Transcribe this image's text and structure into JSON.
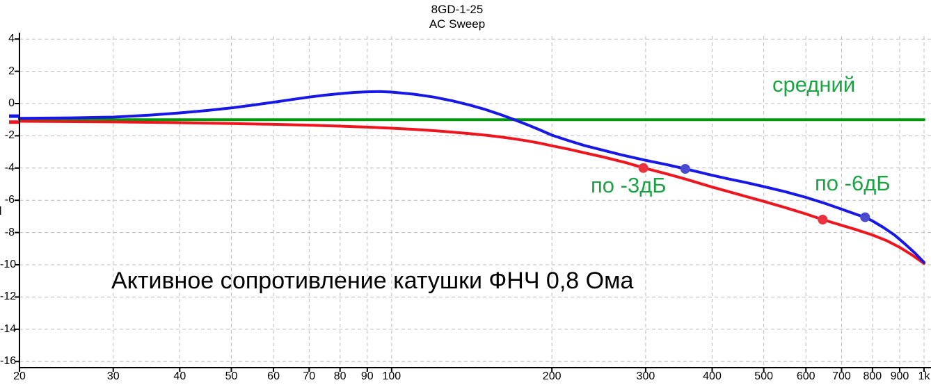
{
  "header": {
    "title_line1": "8GD-1-25",
    "title_line2": "AC Sweep"
  },
  "annotations": {
    "average_label": "средний",
    "minus3db_label": "по -3дБ",
    "minus6db_label": "по -6дБ",
    "note": "Активное сопротивление катушки ФНЧ 0,8 Ома",
    "clipped_left_fragment": "п"
  },
  "colors": {
    "blue_curve": "#1717e6",
    "red_curve": "#ee151e",
    "green_line": "#009a0c",
    "green_text": "#1ea344",
    "grid": "#bcbcbc",
    "axis": "#000000",
    "red_dot": "#e8333f",
    "blue_dot": "#4a4ad0",
    "note_text": "#000000"
  },
  "chart_data": {
    "type": "line",
    "title": "8GD-1-25",
    "subtitle": "AC Sweep",
    "x_axis": {
      "scale": "log",
      "min": 20,
      "max": 1000,
      "tick_labels": [
        "20",
        "30",
        "40",
        "50",
        "60",
        "70",
        "80",
        "90",
        "100",
        "200",
        "300",
        "400",
        "500",
        "600",
        "700",
        "800",
        "900",
        "1k"
      ],
      "tick_values": [
        20,
        30,
        40,
        50,
        60,
        70,
        80,
        90,
        100,
        200,
        300,
        400,
        500,
        600,
        700,
        800,
        900,
        1000
      ],
      "grid": "dashed"
    },
    "y_axis": {
      "min": -16,
      "max": 4,
      "tick_step": 2,
      "tick_labels": [
        "4",
        "2",
        "0",
        "-2",
        "-4",
        "-6",
        "-8",
        "-10",
        "-12",
        "-14",
        "-16"
      ],
      "tick_values": [
        4,
        2,
        0,
        -2,
        -4,
        -6,
        -8,
        -10,
        -12,
        -14,
        -16
      ],
      "grid": "dashed"
    },
    "series": [
      {
        "name": "средний",
        "color_key": "green_line",
        "points": [
          [
            20,
            -1.0
          ],
          [
            1000,
            -1.0
          ]
        ]
      },
      {
        "name": "red",
        "color_key": "red_curve",
        "points": [
          [
            20,
            -1.1
          ],
          [
            30,
            -1.14
          ],
          [
            40,
            -1.19
          ],
          [
            50,
            -1.24
          ],
          [
            60,
            -1.29
          ],
          [
            70,
            -1.34
          ],
          [
            80,
            -1.4
          ],
          [
            90,
            -1.46
          ],
          [
            100,
            -1.53
          ],
          [
            110,
            -1.6
          ],
          [
            120,
            -1.68
          ],
          [
            130,
            -1.77
          ],
          [
            140,
            -1.86
          ],
          [
            150,
            -1.96
          ],
          [
            160,
            -2.07
          ],
          [
            170,
            -2.19
          ],
          [
            180,
            -2.32
          ],
          [
            190,
            -2.46
          ],
          [
            200,
            -2.62
          ],
          [
            215,
            -2.83
          ],
          [
            230,
            -3.05
          ],
          [
            250,
            -3.32
          ],
          [
            275,
            -3.66
          ],
          [
            300,
            -4.02
          ],
          [
            330,
            -4.38
          ],
          [
            356,
            -4.68
          ],
          [
            400,
            -5.18
          ],
          [
            450,
            -5.65
          ],
          [
            500,
            -6.07
          ],
          [
            550,
            -6.46
          ],
          [
            600,
            -6.85
          ],
          [
            645,
            -7.2
          ],
          [
            700,
            -7.55
          ],
          [
            750,
            -7.85
          ],
          [
            800,
            -8.15
          ],
          [
            850,
            -8.5
          ],
          [
            900,
            -8.92
          ],
          [
            950,
            -9.4
          ],
          [
            1000,
            -9.92
          ]
        ]
      },
      {
        "name": "blue",
        "color_key": "blue_curve",
        "points": [
          [
            20,
            -0.92
          ],
          [
            25,
            -0.89
          ],
          [
            30,
            -0.84
          ],
          [
            35,
            -0.72
          ],
          [
            40,
            -0.58
          ],
          [
            45,
            -0.43
          ],
          [
            50,
            -0.27
          ],
          [
            55,
            -0.09
          ],
          [
            60,
            0.08
          ],
          [
            65,
            0.25
          ],
          [
            70,
            0.4
          ],
          [
            75,
            0.52
          ],
          [
            80,
            0.61
          ],
          [
            85,
            0.69
          ],
          [
            90,
            0.73
          ],
          [
            95,
            0.74
          ],
          [
            100,
            0.71
          ],
          [
            110,
            0.58
          ],
          [
            120,
            0.4
          ],
          [
            130,
            0.17
          ],
          [
            140,
            -0.09
          ],
          [
            150,
            -0.37
          ],
          [
            160,
            -0.68
          ],
          [
            170,
            -1.0
          ],
          [
            180,
            -1.32
          ],
          [
            190,
            -1.64
          ],
          [
            200,
            -1.96
          ],
          [
            215,
            -2.3
          ],
          [
            230,
            -2.6
          ],
          [
            250,
            -2.9
          ],
          [
            270,
            -3.18
          ],
          [
            300,
            -3.52
          ],
          [
            330,
            -3.8
          ],
          [
            356,
            -4.05
          ],
          [
            380,
            -4.27
          ],
          [
            400,
            -4.45
          ],
          [
            430,
            -4.68
          ],
          [
            460,
            -4.88
          ],
          [
            500,
            -5.15
          ],
          [
            550,
            -5.48
          ],
          [
            600,
            -5.82
          ],
          [
            650,
            -6.18
          ],
          [
            700,
            -6.55
          ],
          [
            750,
            -6.9
          ],
          [
            775,
            -7.05
          ],
          [
            800,
            -7.28
          ],
          [
            840,
            -7.7
          ],
          [
            880,
            -8.15
          ],
          [
            920,
            -8.7
          ],
          [
            960,
            -9.25
          ],
          [
            1000,
            -9.85
          ]
        ]
      }
    ],
    "markers": [
      {
        "series": "red",
        "x": 297,
        "y": -4.0,
        "meaning": "по -3дБ",
        "color_key": "red_dot"
      },
      {
        "series": "blue",
        "x": 356,
        "y": -4.05,
        "meaning": "по -3дБ",
        "color_key": "blue_dot"
      },
      {
        "series": "red",
        "x": 645,
        "y": -7.2,
        "meaning": "по -6дБ",
        "color_key": "red_dot"
      },
      {
        "series": "blue",
        "x": 775,
        "y": -7.05,
        "meaning": "по -6дБ",
        "color_key": "blue_dot"
      }
    ],
    "edge_marks": [
      {
        "color_key": "blue_curve",
        "y": -0.78
      },
      {
        "color_key": "red_curve",
        "y": -1.15
      }
    ],
    "legend": "none"
  }
}
